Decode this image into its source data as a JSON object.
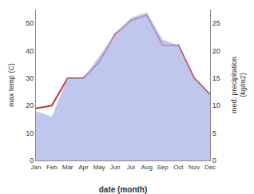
{
  "chart_data": {
    "type": "line",
    "xlabel": "date (month)",
    "ylabel": "max temp (C)",
    "y2label": "med. precipitation\n(kg/m2)",
    "categories": [
      "Jan",
      "Feb",
      "Mar",
      "Apr",
      "May",
      "Jun",
      "Jul",
      "Aug",
      "Sep",
      "Oct",
      "Nov",
      "Dec"
    ],
    "series": [
      {
        "type": "area",
        "axis": "y2",
        "color": "#aab4e8",
        "values": [
          9,
          8,
          15,
          15,
          19,
          23,
          26,
          27,
          22,
          21,
          15,
          12
        ]
      },
      {
        "type": "line",
        "color": "#cc3333",
        "values": [
          19,
          20,
          30,
          30,
          36,
          46,
          51,
          53,
          42,
          42,
          30,
          24
        ]
      }
    ],
    "ylim": [
      0,
      55
    ],
    "yticks": [
      0,
      10,
      20,
      30,
      40,
      50
    ],
    "y2lim": [
      0,
      27.5
    ],
    "y2ticks": [
      0,
      5,
      10,
      15,
      20,
      25
    ],
    "grid": false
  }
}
